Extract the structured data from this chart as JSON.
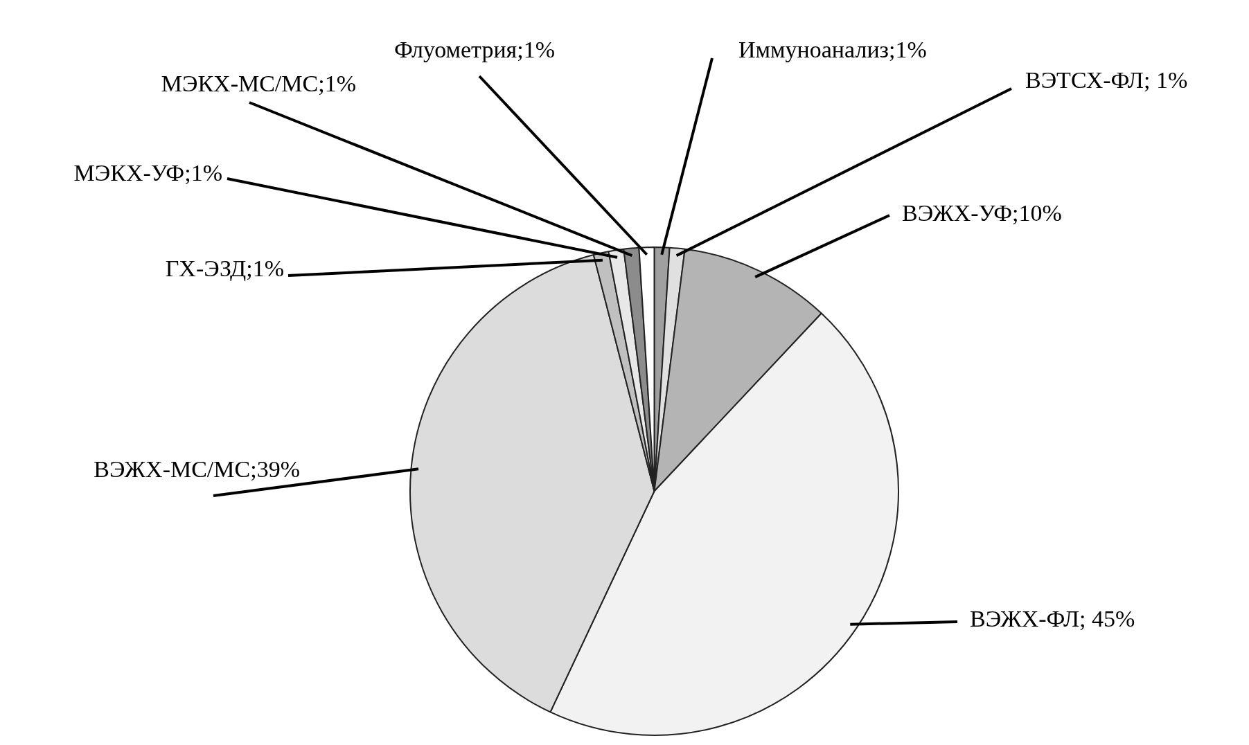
{
  "chart_data": {
    "type": "pie",
    "categories": [
      "Иммуноанализ",
      "ВЭТСХ-ФЛ",
      "ВЭЖХ-УФ",
      "ВЭЖХ-ФЛ",
      "ВЭЖХ-МС/МС",
      "ГХ-ЭЗД",
      "МЭКХ-УФ",
      "МЭКХ-МС/МС",
      "Флуометрия"
    ],
    "values": [
      1,
      1,
      10,
      45,
      39,
      1,
      1,
      1,
      1
    ],
    "colors": [
      "#a0a0a0",
      "#e0e0e0",
      "#b4b4b4",
      "#f2f2f2",
      "#dcdcdc",
      "#c0c0c0",
      "#e8e8e8",
      "#8c8c8c",
      "#ffffff"
    ],
    "value_labels": [
      ";1%",
      "; 1%",
      ";10%",
      "; 45%",
      ";39%",
      ";1%",
      ";1%",
      ";1%",
      ";1%"
    ],
    "legend": false
  }
}
